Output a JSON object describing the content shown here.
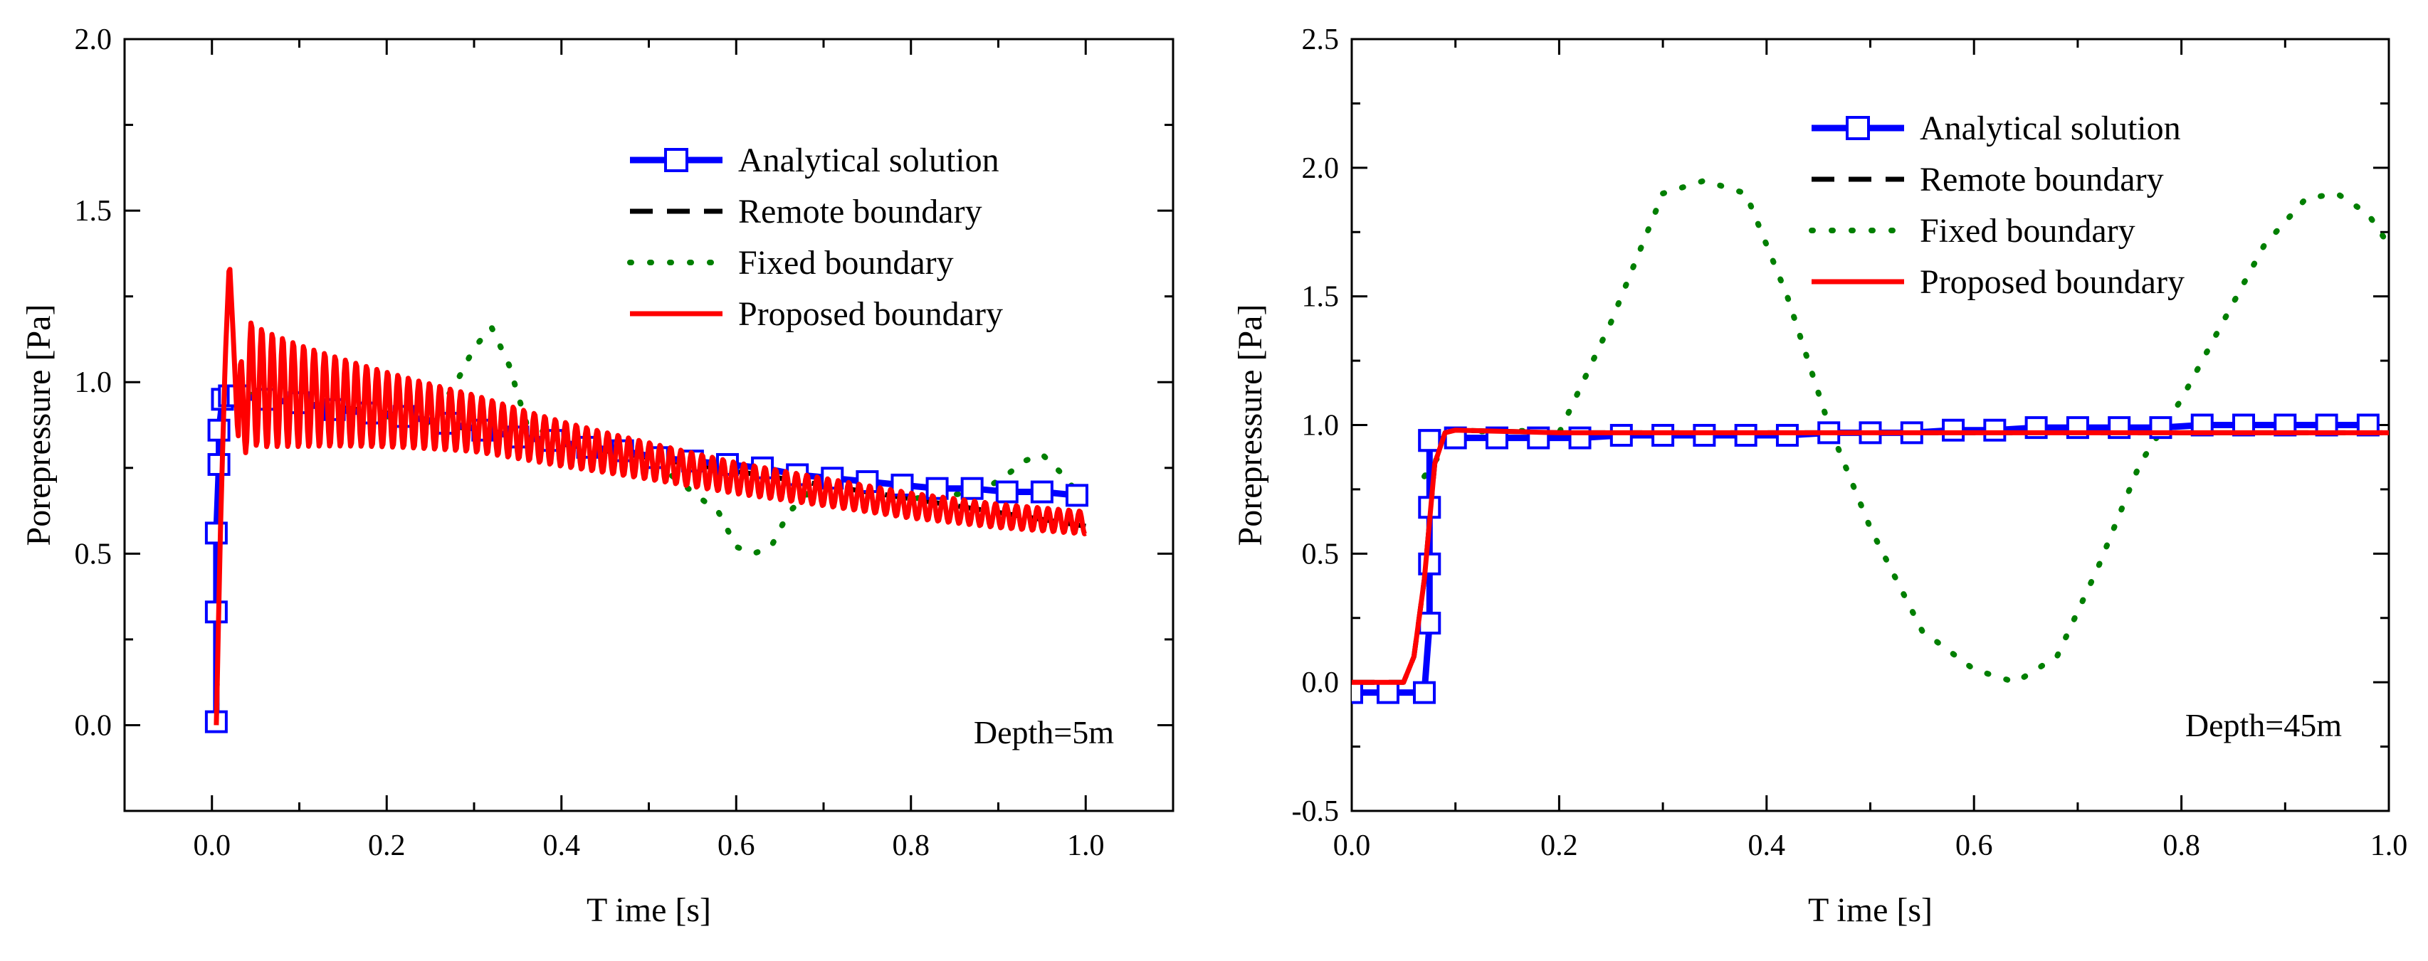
{
  "chart_data": [
    {
      "type": "line",
      "xlabel": "T ime [s]",
      "ylabel": "Porepressure [Pa]",
      "xlim": [
        -0.1,
        1.1
      ],
      "ylim": [
        -0.25,
        2.0
      ],
      "xticks": [
        0.0,
        0.2,
        0.4,
        0.6,
        0.8,
        1.0
      ],
      "xtick_labels": [
        "0.0",
        "0.2",
        "0.4",
        "0.6",
        "0.8",
        "1.0"
      ],
      "yticks": [
        0.0,
        0.5,
        1.0,
        1.5,
        2.0
      ],
      "ytick_labels": [
        "0.0",
        "0.5",
        "1.0",
        "1.5",
        "2.0"
      ],
      "annotation": "Depth=5m",
      "legend_position": "top-right",
      "colors": {
        "analytical": "#0000ff",
        "remote": "#000000",
        "fixed": "#007f00",
        "proposed": "#ff0000"
      },
      "series": [
        {
          "name": "Analytical solution",
          "style": "line-square-markers",
          "x": [
            0.005,
            0.005,
            0.005,
            0.008,
            0.008,
            0.012,
            0.02,
            0.03,
            0.06,
            0.1,
            0.14,
            0.18,
            0.22,
            0.27,
            0.31,
            0.35,
            0.39,
            0.43,
            0.47,
            0.51,
            0.55,
            0.59,
            0.63,
            0.67,
            0.71,
            0.75,
            0.79,
            0.83,
            0.87,
            0.91,
            0.95,
            0.99
          ],
          "y": [
            0.01,
            0.33,
            0.56,
            0.76,
            0.86,
            0.95,
            0.96,
            0.96,
            0.95,
            0.94,
            0.92,
            0.91,
            0.9,
            0.88,
            0.86,
            0.84,
            0.83,
            0.81,
            0.8,
            0.78,
            0.77,
            0.76,
            0.75,
            0.73,
            0.72,
            0.71,
            0.7,
            0.69,
            0.69,
            0.68,
            0.68,
            0.67
          ]
        },
        {
          "name": "Remote boundary",
          "style": "dashed",
          "x": [
            0.005,
            0.008,
            0.012,
            0.018,
            0.03,
            0.1,
            0.2,
            0.3,
            0.4,
            0.5,
            0.6,
            0.7,
            0.8,
            0.9,
            1.0
          ],
          "y": [
            0.0,
            0.5,
            0.92,
            0.97,
            0.96,
            0.94,
            0.91,
            0.86,
            0.82,
            0.78,
            0.74,
            0.7,
            0.66,
            0.62,
            0.58
          ]
        },
        {
          "name": "Fixed boundary",
          "style": "dotted",
          "x": [
            0.005,
            0.008,
            0.012,
            0.02,
            0.05,
            0.1,
            0.15,
            0.2,
            0.25,
            0.28,
            0.3,
            0.32,
            0.34,
            0.36,
            0.4,
            0.5,
            0.58,
            0.6,
            0.62,
            0.64,
            0.66,
            0.7,
            0.8,
            0.88,
            0.91,
            0.93,
            0.95,
            0.97,
            0.99
          ],
          "y": [
            0.0,
            0.6,
            0.95,
            0.98,
            0.96,
            0.94,
            0.92,
            0.9,
            0.88,
            1.0,
            1.1,
            1.16,
            1.05,
            0.88,
            0.83,
            0.78,
            0.62,
            0.52,
            0.5,
            0.52,
            0.62,
            0.72,
            0.66,
            0.68,
            0.73,
            0.77,
            0.79,
            0.74,
            0.68
          ]
        },
        {
          "name": "Proposed boundary",
          "style": "solid-oscillating",
          "x": [
            0.005,
            0.01,
            0.015,
            0.02,
            0.025,
            0.03,
            0.04,
            0.06,
            0.1,
            0.2,
            0.3,
            0.4,
            0.5,
            0.6,
            0.7,
            0.8,
            0.9,
            1.0
          ],
          "y": [
            0.0,
            0.6,
            1.05,
            1.36,
            1.1,
            0.82,
            1.0,
            0.98,
            0.96,
            0.92,
            0.88,
            0.82,
            0.77,
            0.72,
            0.68,
            0.64,
            0.61,
            0.59
          ],
          "oscillation": {
            "period": 0.012,
            "amplitude_start": 0.19,
            "amplitude_end": 0.03,
            "decay": 4.0
          }
        }
      ]
    },
    {
      "type": "line",
      "xlabel": "T ime [s]",
      "ylabel": "Porepressure [Pa]",
      "xlim": [
        0.0,
        1.0
      ],
      "ylim": [
        -0.5,
        2.5
      ],
      "xticks": [
        0.0,
        0.2,
        0.4,
        0.6,
        0.8,
        1.0
      ],
      "xtick_labels": [
        "0.0",
        "0.2",
        "0.4",
        "0.6",
        "0.8",
        "1.0"
      ],
      "yticks": [
        -0.5,
        0.0,
        0.5,
        1.0,
        1.5,
        2.0,
        2.5
      ],
      "ytick_labels": [
        "-0.5",
        "0.0",
        "0.5",
        "1.0",
        "1.5",
        "2.0",
        "2.5"
      ],
      "annotation": "Depth=45m",
      "legend_position": "top-right",
      "colors": {
        "analytical": "#0000ff",
        "remote": "#000000",
        "fixed": "#007f00",
        "proposed": "#ff0000"
      },
      "series": [
        {
          "name": "Analytical solution",
          "style": "line-square-markers",
          "x": [
            0.0,
            0.035,
            0.07,
            0.075,
            0.075,
            0.075,
            0.075,
            0.075,
            0.1,
            0.14,
            0.18,
            0.22,
            0.26,
            0.3,
            0.34,
            0.38,
            0.42,
            0.46,
            0.5,
            0.54,
            0.58,
            0.62,
            0.66,
            0.7,
            0.74,
            0.78,
            0.82,
            0.86,
            0.9,
            0.94,
            0.98
          ],
          "y": [
            -0.04,
            -0.04,
            -0.04,
            0.23,
            0.46,
            0.68,
            0.94,
            0.94,
            0.95,
            0.95,
            0.95,
            0.95,
            0.96,
            0.96,
            0.96,
            0.96,
            0.96,
            0.97,
            0.97,
            0.97,
            0.98,
            0.98,
            0.99,
            0.99,
            0.99,
            0.99,
            1.0,
            1.0,
            1.0,
            1.0,
            1.0
          ]
        },
        {
          "name": "Remote boundary",
          "style": "dashed",
          "x": [
            0.0,
            0.05,
            0.06,
            0.07,
            0.08,
            0.09,
            0.1,
            0.2,
            0.4,
            0.6,
            0.8,
            1.0
          ],
          "y": [
            0.0,
            0.0,
            0.1,
            0.4,
            0.85,
            0.97,
            0.98,
            0.97,
            0.97,
            0.97,
            0.97,
            0.97
          ]
        },
        {
          "name": "Fixed boundary",
          "style": "dotted",
          "x": [
            0.07,
            0.1,
            0.15,
            0.2,
            0.25,
            0.3,
            0.34,
            0.38,
            0.42,
            0.46,
            0.5,
            0.55,
            0.6,
            0.64,
            0.68,
            0.72,
            0.76,
            0.8,
            0.84,
            0.88,
            0.92,
            0.95,
            0.98,
            1.0
          ],
          "y": [
            0.8,
            0.97,
            0.98,
            0.97,
            1.4,
            1.9,
            1.95,
            1.9,
            1.5,
            1.0,
            0.6,
            0.2,
            0.05,
            0.0,
            0.1,
            0.45,
            0.85,
            1.1,
            1.4,
            1.7,
            1.88,
            1.9,
            1.82,
            1.7
          ]
        },
        {
          "name": "Proposed boundary",
          "style": "solid",
          "x": [
            0.0,
            0.05,
            0.06,
            0.07,
            0.08,
            0.09,
            0.1,
            0.2,
            0.4,
            0.6,
            0.8,
            1.0
          ],
          "y": [
            0.0,
            0.0,
            0.1,
            0.4,
            0.85,
            0.97,
            0.98,
            0.97,
            0.97,
            0.97,
            0.97,
            0.97
          ]
        }
      ]
    }
  ]
}
